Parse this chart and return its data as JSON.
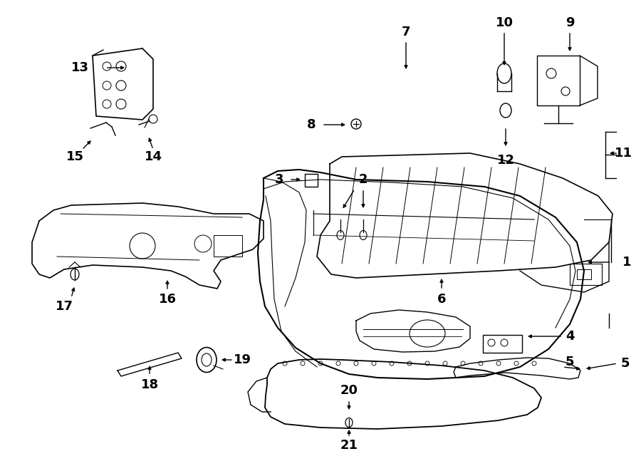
{
  "bg_color": "#ffffff",
  "line_color": "#000000",
  "label_fontsize": 12,
  "fig_w": 9.0,
  "fig_h": 6.61,
  "dpi": 100
}
